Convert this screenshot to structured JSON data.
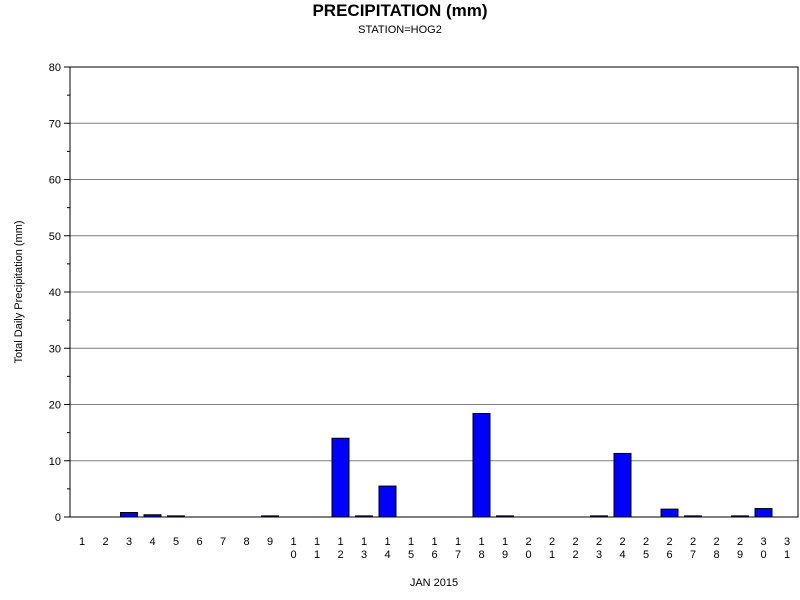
{
  "chart_data": {
    "type": "bar",
    "title": "PRECIPITATION (mm)",
    "subtitle": "STATION=HOG2",
    "xlabel": "JAN 2015",
    "ylabel": "Total Daily Precipitation (mm)",
    "ylim": [
      0,
      80
    ],
    "yticks": [
      "0",
      "10",
      "20",
      "30",
      "40",
      "50",
      "60",
      "70",
      "80"
    ],
    "categories": [
      "1",
      "2",
      "3",
      "4",
      "5",
      "6",
      "7",
      "8",
      "9",
      "10",
      "11",
      "12",
      "13",
      "14",
      "15",
      "16",
      "17",
      "18",
      "19",
      "20",
      "21",
      "22",
      "23",
      "24",
      "25",
      "26",
      "27",
      "28",
      "29",
      "30",
      "31"
    ],
    "values": [
      0,
      0,
      0.8,
      0.4,
      0.2,
      0,
      0,
      0,
      0.2,
      0,
      0,
      14.0,
      0.2,
      5.5,
      0,
      0,
      0,
      18.4,
      0.2,
      0,
      0,
      0,
      0.2,
      11.3,
      0,
      1.4,
      0.2,
      0,
      0.2,
      1.5,
      0
    ],
    "grid": true,
    "bar_color": "#0000ff"
  }
}
